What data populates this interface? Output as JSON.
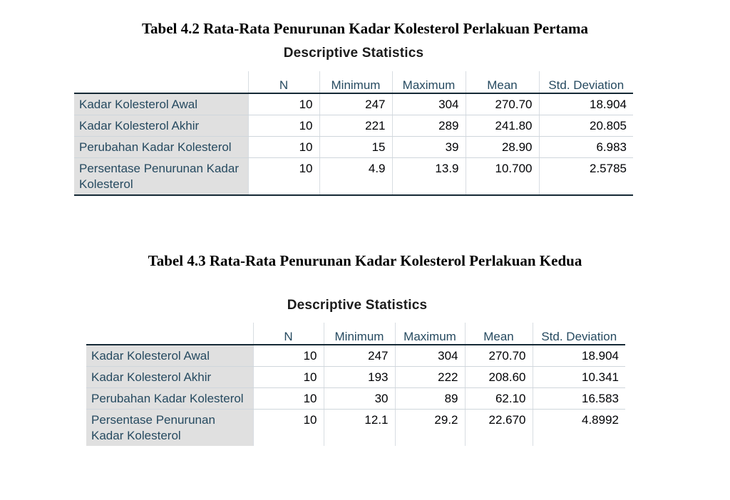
{
  "table1": {
    "caption": "Tabel 4.2 Rata-Rata Penurunan Kadar Kolesterol Perlakuan Pertama",
    "title": "Descriptive Statistics",
    "columns": [
      "N",
      "Minimum",
      "Maximum",
      "Mean",
      "Std. Deviation"
    ],
    "rows": [
      {
        "label": "Kadar Kolesterol Awal",
        "values": [
          "10",
          "247",
          "304",
          "270.70",
          "18.904"
        ]
      },
      {
        "label": "Kadar Kolesterol Akhir",
        "values": [
          "10",
          "221",
          "289",
          "241.80",
          "20.805"
        ]
      },
      {
        "label": "Perubahan Kadar Kolesterol",
        "values": [
          "10",
          "15",
          "39",
          "28.90",
          "6.983"
        ]
      },
      {
        "label": "Persentase Penurunan Kadar Kolesterol",
        "values": [
          "10",
          "4.9",
          "13.9",
          "10.700",
          "2.5785"
        ]
      }
    ]
  },
  "table2": {
    "caption": "Tabel 4.3 Rata-Rata Penurunan Kadar Kolesterol Perlakuan Kedua",
    "title": "Descriptive Statistics",
    "columns": [
      "N",
      "Minimum",
      "Maximum",
      "Mean",
      "Std. Deviation"
    ],
    "rows": [
      {
        "label": "Kadar Kolesterol Awal",
        "values": [
          "10",
          "247",
          "304",
          "270.70",
          "18.904"
        ]
      },
      {
        "label": "Kadar Kolesterol Akhir",
        "values": [
          "10",
          "193",
          "222",
          "208.60",
          "10.341"
        ]
      },
      {
        "label": "Perubahan Kadar Kolesterol",
        "values": [
          "10",
          "30",
          "89",
          "62.10",
          "16.583"
        ]
      },
      {
        "label": "Persentase Penurunan Kadar Kolesterol",
        "values": [
          "10",
          "12.1",
          "29.2",
          "22.670",
          "4.8992"
        ]
      }
    ]
  }
}
